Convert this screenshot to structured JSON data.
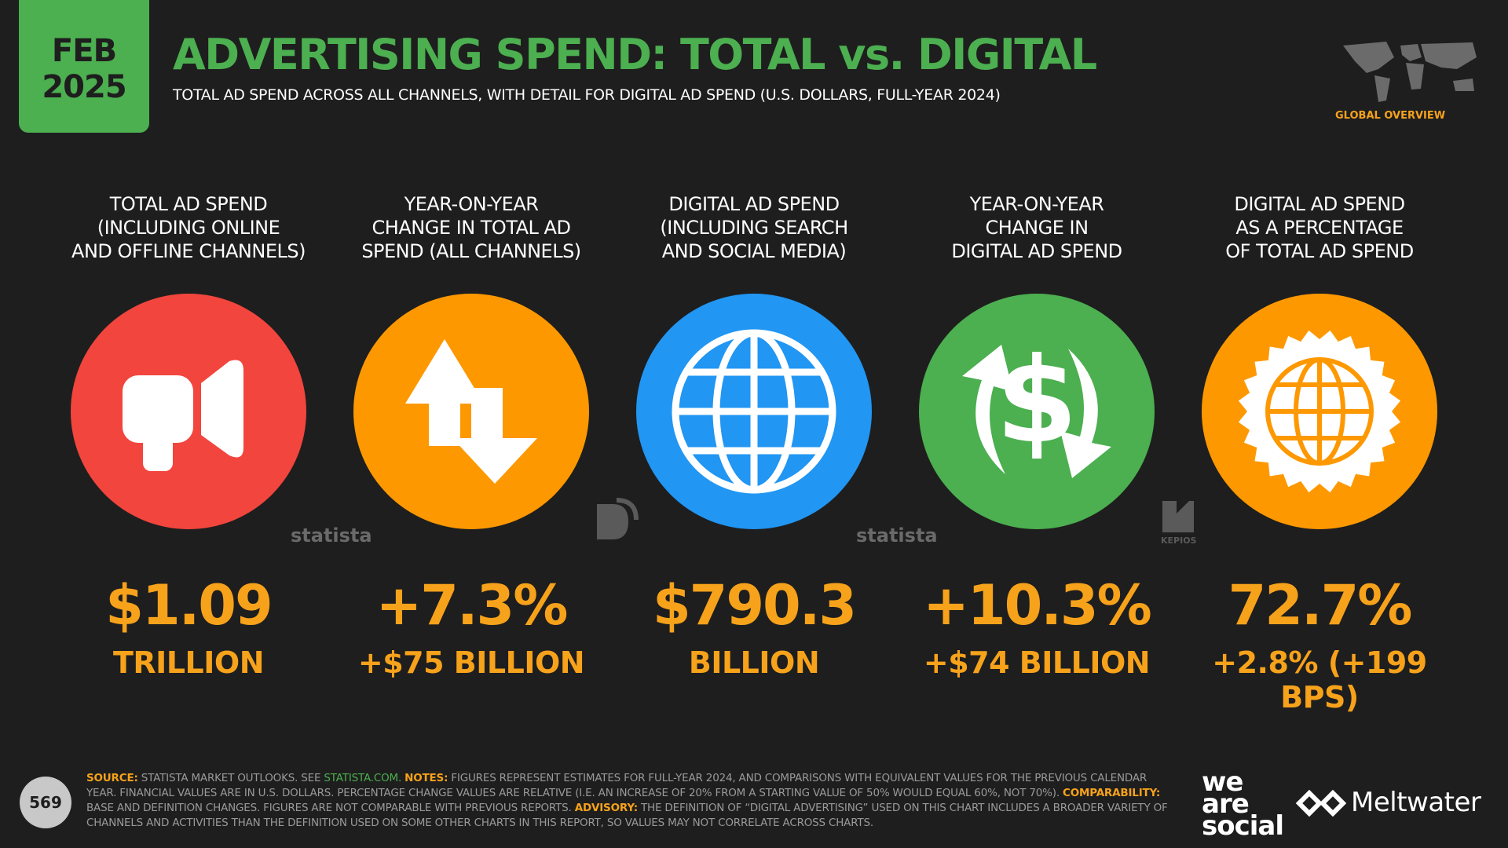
{
  "header": {
    "month": "FEB",
    "year": "2025",
    "title": "ADVERTISING SPEND: TOTAL vs. DIGITAL",
    "subtitle": "TOTAL AD SPEND ACROSS ALL CHANNELS, WITH DETAIL FOR DIGITAL AD SPEND (U.S. DOLLARS, FULL-YEAR 2024)",
    "badge": "GLOBAL OVERVIEW"
  },
  "metrics": [
    {
      "label": [
        "TOTAL AD SPEND",
        "(INCLUDING ONLINE",
        "AND OFFLINE CHANNELS)"
      ],
      "color": "#f2453d",
      "value": "$1.09",
      "detail": "TRILLION"
    },
    {
      "label": [
        "YEAR-ON-YEAR",
        "CHANGE IN TOTAL AD",
        "SPEND (ALL CHANNELS)"
      ],
      "color": "#fe9800",
      "value": "+7.3%",
      "detail": "+$75 BILLION"
    },
    {
      "label": [
        "DIGITAL AD SPEND",
        "(INCLUDING SEARCH",
        "AND SOCIAL MEDIA)"
      ],
      "color": "#2196f3",
      "value": "$790.3",
      "detail": "BILLION"
    },
    {
      "label": [
        "YEAR-ON-YEAR",
        "CHANGE IN",
        "DIGITAL AD SPEND"
      ],
      "color": "#4caf50",
      "value": "+10.3%",
      "detail": "+$74 BILLION"
    },
    {
      "label": [
        "DIGITAL AD SPEND",
        "AS A PERCENTAGE",
        "OF TOTAL AD SPEND"
      ],
      "color": "#fe9800",
      "value": "72.7%",
      "detail": "+2.8% (+199 BPS)"
    }
  ],
  "logos": {
    "statista": "statista",
    "kepios": "KEPIOS",
    "we_are_social": [
      "we",
      "are",
      "social"
    ],
    "meltwater": "Meltwater"
  },
  "footer": {
    "page": "569",
    "segments": [
      {
        "text": "SOURCE:",
        "style": "label"
      },
      {
        "text": "STATISTA MARKET OUTLOOKS. SEE",
        "style": "plain"
      },
      {
        "text": "STATISTA.COM.",
        "style": "link"
      },
      {
        "text": "NOTES:",
        "style": "label"
      },
      {
        "text": "FIGURES REPRESENT ESTIMATES FOR FULL-YEAR 2024, AND COMPARISONS WITH EQUIVALENT VALUES FOR THE PREVIOUS CALENDAR YEAR. FINANCIAL VALUES ARE IN U.S. DOLLARS. PERCENTAGE CHANGE VALUES ARE RELATIVE (I.E. AN INCREASE OF 20% FROM A STARTING VALUE OF 50% WOULD EQUAL 60%, NOT 70%).",
        "style": "plain"
      },
      {
        "text": "COMPARABILITY:",
        "style": "label"
      },
      {
        "text": "BASE AND DEFINITION CHANGES. FIGURES ARE NOT COMPARABLE WITH PREVIOUS REPORTS.",
        "style": "plain"
      },
      {
        "text": "ADVISORY:",
        "style": "label"
      },
      {
        "text": "THE DEFINITION OF “DIGITAL ADVERTISING” USED ON THIS CHART INCLUDES A BROADER VARIETY OF CHANNELS AND ACTIVITIES THAN THE DEFINITION USED ON SOME OTHER CHARTS IN THIS REPORT, SO VALUES MAY NOT CORRELATE ACROSS CHARTS.",
        "style": "plain"
      }
    ]
  }
}
